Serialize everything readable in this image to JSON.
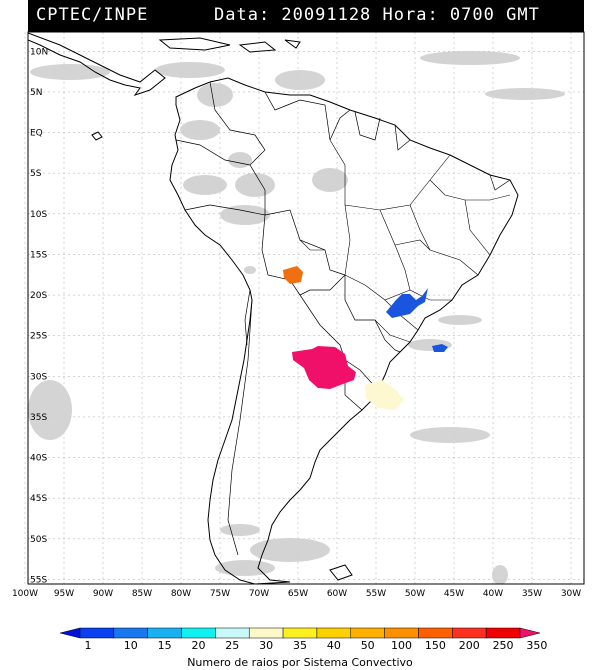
{
  "header": {
    "source": "CPTEC/INPE",
    "datetime": "Data: 20091128 Hora: 0700 GMT"
  },
  "map": {
    "lat_labels": [
      "10N",
      "5N",
      "EQ",
      "5S",
      "10S",
      "15S",
      "20S",
      "25S",
      "30S",
      "35S",
      "40S",
      "45S",
      "50S",
      "55S"
    ],
    "lon_labels": [
      "100W",
      "95W",
      "90W",
      "85W",
      "80W",
      "75W",
      "70W",
      "65W",
      "60W",
      "55W",
      "50W",
      "45W",
      "40W",
      "35W",
      "30W"
    ],
    "lightning_cells": [
      {
        "name": "bolivia-cell",
        "lon": -64.6,
        "lat": -17.6,
        "color": "#f07010"
      },
      {
        "name": "argentina-cell",
        "lon": -60.5,
        "lat": -28.6,
        "color": "#f0106a"
      },
      {
        "name": "sao-paulo-cell",
        "lon": -48.6,
        "lat": -21.2,
        "color": "#1a55e0"
      },
      {
        "name": "atlantic-cell",
        "lon": -44.2,
        "lat": -26.4,
        "color": "#1a55e0"
      },
      {
        "name": "uruguay-cell",
        "lon": -52.3,
        "lat": -32.8,
        "color": "#fdf8d0"
      }
    ]
  },
  "colorbar": {
    "values": [
      "1",
      "10",
      "15",
      "20",
      "25",
      "30",
      "35",
      "40",
      "50",
      "100",
      "150",
      "200",
      "250",
      "350"
    ],
    "colors": [
      "#0012d8",
      "#0a40f0",
      "#1878f0",
      "#18b0f0",
      "#10f0f0",
      "#c8f8f8",
      "#fdf8c8",
      "#fdf020",
      "#fdd000",
      "#fdb000",
      "#fd9000",
      "#fd6000",
      "#fd3020",
      "#f00000",
      "#f0106a"
    ],
    "title": "Numero de raios por Sistema Convectivo"
  }
}
